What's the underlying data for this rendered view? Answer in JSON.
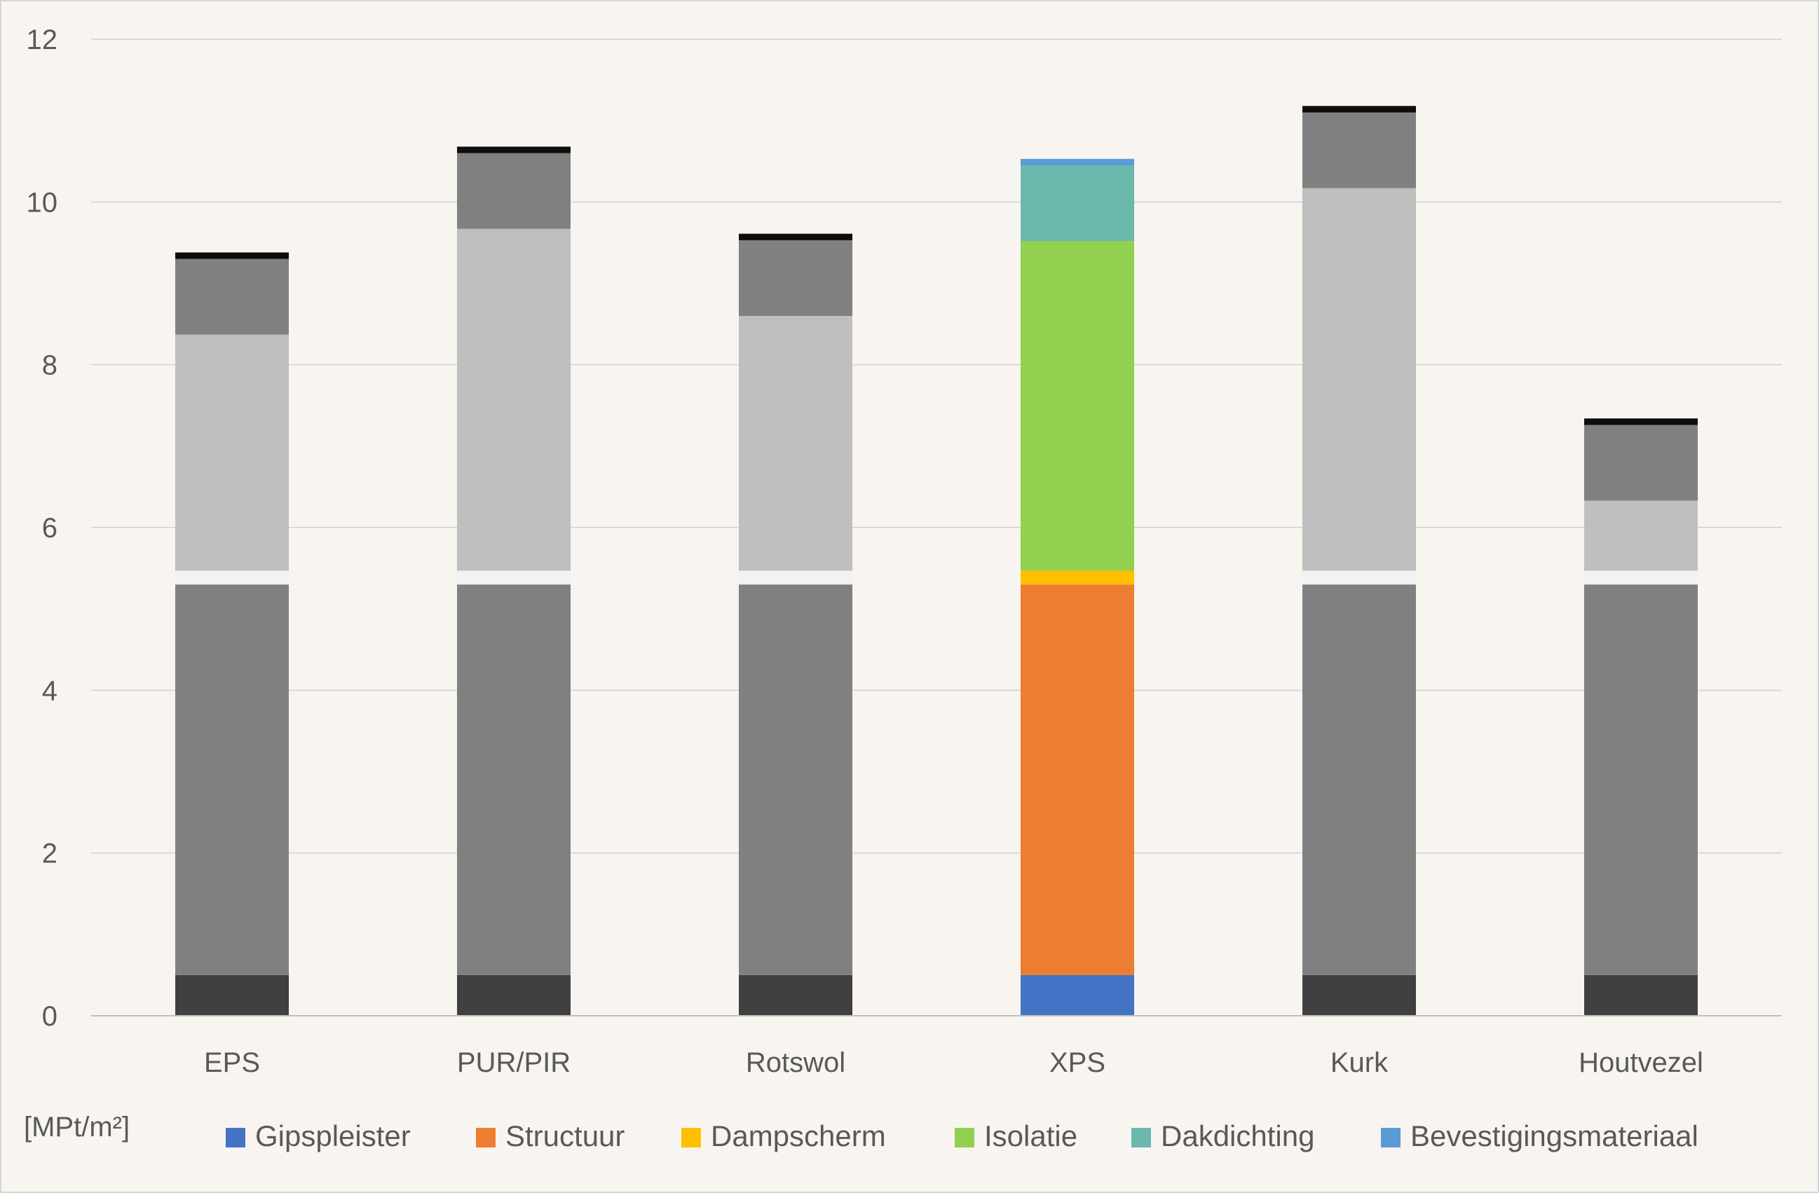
{
  "chart_data": {
    "type": "bar",
    "stacked": true,
    "unit_label": "[MPt/m²]",
    "ylim": [
      0,
      12
    ],
    "yticks": [
      0,
      2,
      4,
      6,
      8,
      10,
      12
    ],
    "grid": true,
    "legend_position": "bottom",
    "categories": [
      "EPS",
      "PUR/PIR",
      "Rotswol",
      "XPS",
      "Kurk",
      "Houtvezel"
    ],
    "highlighted_category": "XPS",
    "dimmed_colors": [
      "#404040",
      "#808080",
      "#f2f2f2",
      "#bfbfbf",
      "#808080",
      "#0d0d0d"
    ],
    "series": [
      {
        "name": "Gipspleister",
        "color": "#4472c4",
        "values": [
          0.5,
          0.5,
          0.5,
          0.5,
          0.5,
          0.5
        ]
      },
      {
        "name": "Structuur",
        "color": "#ed7d31",
        "values": [
          4.8,
          4.8,
          4.8,
          4.8,
          4.8,
          4.8
        ]
      },
      {
        "name": "Dampscherm",
        "color": "#ffc000",
        "values": [
          0.17,
          0.17,
          0.17,
          0.17,
          0.17,
          0.17
        ]
      },
      {
        "name": "Isolatie",
        "color": "#92d050",
        "values": [
          2.9,
          4.2,
          3.13,
          4.05,
          4.7,
          0.86
        ]
      },
      {
        "name": "Dakdichting",
        "color": "#6bb7ab",
        "values": [
          0.93,
          0.93,
          0.93,
          0.93,
          0.93,
          0.93
        ]
      },
      {
        "name": "Bevestigingsmateriaal",
        "color": "#5b9bd5",
        "values": [
          0.08,
          0.08,
          0.08,
          0.08,
          0.08,
          0.08
        ]
      }
    ]
  }
}
